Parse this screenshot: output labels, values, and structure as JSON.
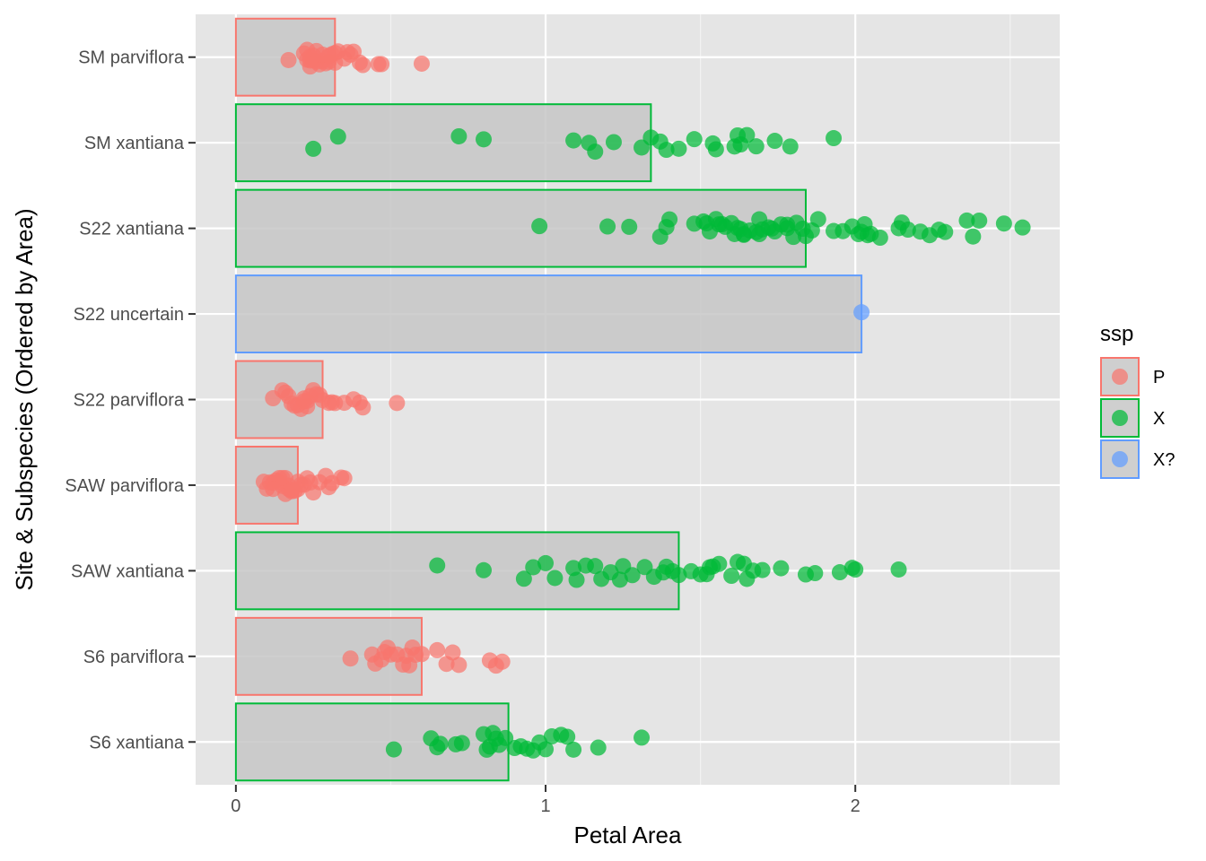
{
  "chart_data": {
    "type": "bar",
    "orientation": "horizontal",
    "title": "",
    "xlabel": "Petal Area",
    "ylabel": "Site & Subspecies (Ordered by Area)",
    "xlim": [
      -0.13,
      2.66
    ],
    "x_ticks": [
      0,
      1,
      2
    ],
    "x_minor_ticks": [
      0.5,
      1.5,
      2.5
    ],
    "x_tick_labels": [
      "0",
      "1",
      "2"
    ],
    "grid": true,
    "categories": [
      "SM parviflora",
      "SM xantiana",
      "S22 xantiana",
      "S22 uncertain",
      "S22 parviflora",
      "SAW parviflora",
      "SAW xantiana",
      "S6 parviflora",
      "S6 xantiana"
    ],
    "bars": [
      {
        "category": "SM parviflora",
        "ssp": "P",
        "value": 0.32
      },
      {
        "category": "SM xantiana",
        "ssp": "X",
        "value": 1.34
      },
      {
        "category": "S22 xantiana",
        "ssp": "X",
        "value": 1.84
      },
      {
        "category": "S22 uncertain",
        "ssp": "X?",
        "value": 2.02
      },
      {
        "category": "S22 parviflora",
        "ssp": "P",
        "value": 0.28
      },
      {
        "category": "SAW parviflora",
        "ssp": "P",
        "value": 0.2
      },
      {
        "category": "SAW xantiana",
        "ssp": "X",
        "value": 1.43
      },
      {
        "category": "S6 parviflora",
        "ssp": "P",
        "value": 0.6
      },
      {
        "category": "S6 xantiana",
        "ssp": "X",
        "value": 0.88
      }
    ],
    "points": [
      {
        "category": "SM parviflora",
        "ssp": "P",
        "values": [
          0.17,
          0.22,
          0.23,
          0.24,
          0.24,
          0.25,
          0.26,
          0.27,
          0.28,
          0.29,
          0.3,
          0.31,
          0.32,
          0.33,
          0.35,
          0.36,
          0.38,
          0.4,
          0.46,
          0.6,
          0.23,
          0.24,
          0.26,
          0.28,
          0.32,
          0.37,
          0.41,
          0.47,
          0.25,
          0.3
        ]
      },
      {
        "category": "SM xantiana",
        "ssp": "X",
        "values": [
          0.25,
          0.33,
          0.72,
          0.8,
          1.09,
          1.14,
          1.16,
          1.22,
          1.31,
          1.34,
          1.37,
          1.39,
          1.43,
          1.48,
          1.54,
          1.55,
          1.61,
          1.62,
          1.63,
          1.65,
          1.68,
          1.74,
          1.79,
          1.93
        ]
      },
      {
        "category": "S22 xantiana",
        "ssp": "X",
        "values": [
          0.98,
          1.2,
          1.27,
          1.37,
          1.39,
          1.4,
          1.48,
          1.51,
          1.53,
          1.55,
          1.56,
          1.57,
          1.58,
          1.6,
          1.61,
          1.62,
          1.63,
          1.64,
          1.66,
          1.68,
          1.69,
          1.7,
          1.72,
          1.73,
          1.74,
          1.76,
          1.78,
          1.8,
          1.81,
          1.83,
          1.84,
          1.86,
          1.88,
          1.93,
          1.96,
          1.99,
          2.01,
          2.02,
          2.03,
          2.05,
          2.08,
          2.14,
          2.15,
          2.17,
          2.21,
          2.24,
          2.27,
          2.29,
          2.36,
          2.38,
          2.4,
          2.48,
          2.54,
          1.64,
          1.78,
          2.04,
          1.52,
          1.69
        ]
      },
      {
        "category": "S22 uncertain",
        "ssp": "X?",
        "values": [
          2.02
        ]
      },
      {
        "category": "S22 parviflora",
        "ssp": "P",
        "values": [
          0.12,
          0.15,
          0.17,
          0.18,
          0.19,
          0.2,
          0.21,
          0.22,
          0.23,
          0.24,
          0.25,
          0.27,
          0.28,
          0.31,
          0.32,
          0.35,
          0.38,
          0.4,
          0.41,
          0.52,
          0.16,
          0.23,
          0.26,
          0.3,
          0.22
        ]
      },
      {
        "category": "SAW parviflora",
        "ssp": "P",
        "values": [
          0.09,
          0.1,
          0.11,
          0.12,
          0.13,
          0.14,
          0.15,
          0.15,
          0.16,
          0.17,
          0.17,
          0.18,
          0.19,
          0.2,
          0.21,
          0.22,
          0.23,
          0.25,
          0.27,
          0.29,
          0.3,
          0.31,
          0.34,
          0.35,
          0.14,
          0.16,
          0.18,
          0.2,
          0.12,
          0.24
        ]
      },
      {
        "category": "SAW xantiana",
        "ssp": "X",
        "values": [
          0.65,
          0.8,
          0.93,
          0.96,
          1.0,
          1.03,
          1.09,
          1.1,
          1.13,
          1.16,
          1.21,
          1.24,
          1.25,
          1.28,
          1.32,
          1.35,
          1.39,
          1.41,
          1.43,
          1.47,
          1.5,
          1.52,
          1.54,
          1.56,
          1.6,
          1.62,
          1.64,
          1.67,
          1.7,
          1.76,
          1.84,
          1.87,
          1.95,
          1.99,
          2.0,
          2.14,
          1.38,
          1.53,
          1.65,
          1.18
        ]
      },
      {
        "category": "S6 parviflora",
        "ssp": "P",
        "values": [
          0.37,
          0.44,
          0.45,
          0.48,
          0.49,
          0.5,
          0.52,
          0.54,
          0.56,
          0.57,
          0.58,
          0.6,
          0.65,
          0.68,
          0.7,
          0.72,
          0.82,
          0.84,
          0.86,
          0.55,
          0.47
        ]
      },
      {
        "category": "S6 xantiana",
        "ssp": "X",
        "values": [
          0.51,
          0.63,
          0.65,
          0.66,
          0.71,
          0.73,
          0.8,
          0.81,
          0.82,
          0.83,
          0.85,
          0.87,
          0.9,
          0.92,
          0.96,
          0.98,
          1.0,
          1.02,
          1.05,
          1.07,
          1.09,
          1.17,
          1.31,
          0.84,
          0.94
        ]
      }
    ],
    "legend": {
      "title": "ssp",
      "placement": "right",
      "entries": [
        {
          "label": "P",
          "color": "#F8766D"
        },
        {
          "label": "X",
          "color": "#00BA38"
        },
        {
          "label": "X?",
          "color": "#619CFF"
        }
      ]
    },
    "colors": {
      "P": "#F8766D",
      "X": "#00BA38",
      "X?": "#619CFF",
      "panel_background": "#E5E5E5",
      "grid": "#FFFFFF",
      "bar_fill": "#C7C7C7"
    }
  }
}
